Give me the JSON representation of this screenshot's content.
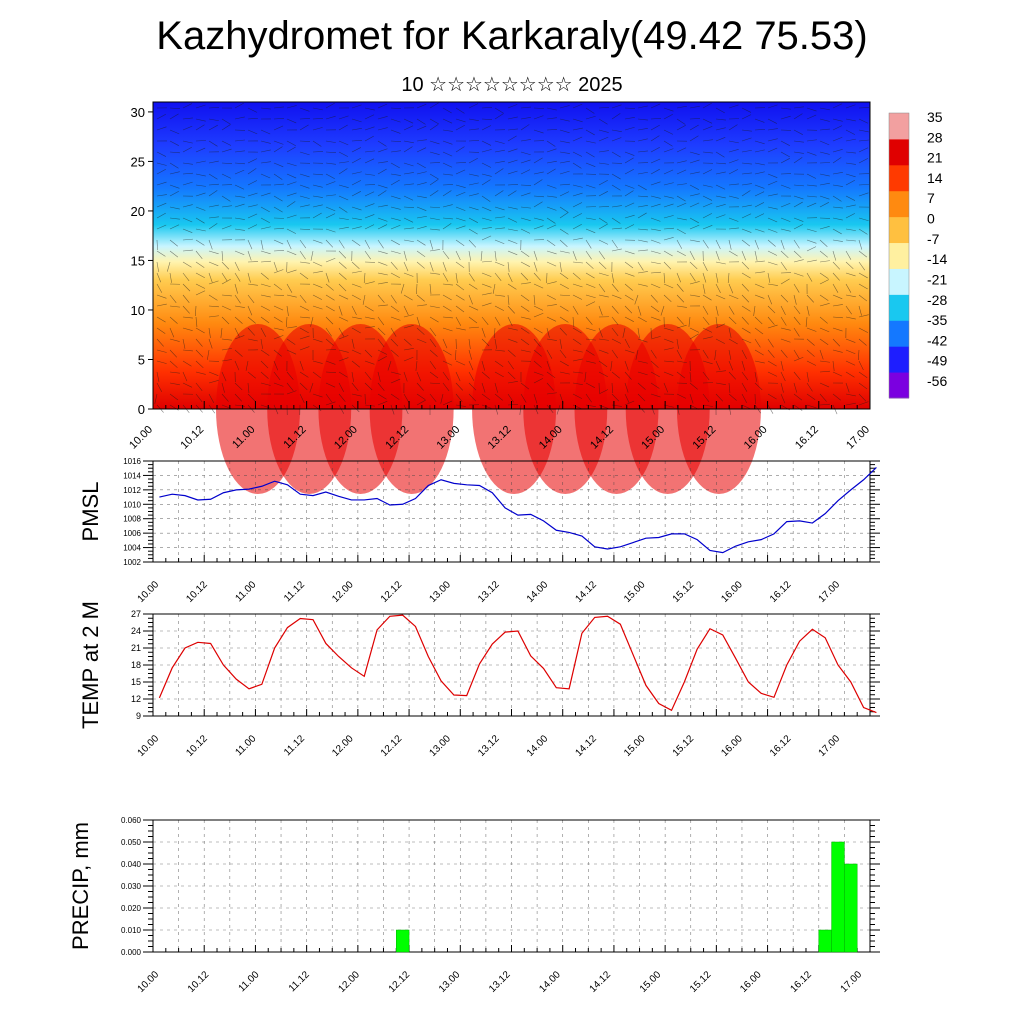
{
  "header": {
    "title": "Kazhydromet for Karkaraly(49.42 75.53)",
    "subtitle": "10 ☆☆☆☆☆☆☆☆ 2025"
  },
  "time_labels": [
    "10.00",
    "10.12",
    "11.00",
    "11.12",
    "12.00",
    "12.12",
    "13.00",
    "13.12",
    "14.00",
    "14.12",
    "15.00",
    "15.12",
    "16.00",
    "16.12",
    "17.00"
  ],
  "chart_data": [
    {
      "type": "heatmap",
      "y_ticks": [
        0,
        5,
        10,
        15,
        20,
        25,
        30
      ],
      "ylim": [
        0,
        31
      ],
      "colorbar_labels": [
        "35",
        "28",
        "21",
        "14",
        "7",
        "0",
        "-7",
        "-14",
        "-21",
        "-28",
        "-35",
        "-42",
        "-49",
        "-56"
      ],
      "colors": [
        "#7b00e0",
        "#1e1eff",
        "#1478ff",
        "#19c8f0",
        "#c8f5ff",
        "#fff0a0",
        "#ffc040",
        "#ff8a10",
        "#ff3a00",
        "#e00000",
        "#f2a0a0"
      ]
    },
    {
      "type": "line",
      "ylabel": "PMSL",
      "y_ticks": [
        1002,
        1004,
        1006,
        1008,
        1010,
        1012,
        1014,
        1016
      ],
      "ylim": [
        1002,
        1016
      ],
      "color": "#0000cc",
      "values": [
        1011,
        1011.4,
        1011.2,
        1010.6,
        1010.7,
        1011.6,
        1012,
        1012.1,
        1012.5,
        1013.2,
        1012.7,
        1011.4,
        1011.2,
        1011.7,
        1011.1,
        1010.6,
        1010.6,
        1010.8,
        1009.9,
        1010,
        1010.8,
        1012.6,
        1013.4,
        1012.9,
        1012.7,
        1012.6,
        1011.6,
        1009.5,
        1008.5,
        1008.6,
        1007.7,
        1006.4,
        1006.1,
        1005.6,
        1004.1,
        1003.8,
        1004.1,
        1004.7,
        1005.3,
        1005.4,
        1005.9,
        1005.9,
        1005.1,
        1003.6,
        1003.3,
        1004.2,
        1004.8,
        1005.1,
        1005.9,
        1007.6,
        1007.7,
        1007.4,
        1008.7,
        1010.5,
        1012,
        1013.4,
        1015.1
      ]
    },
    {
      "type": "line",
      "ylabel": "TEMP at 2 M",
      "y_ticks": [
        9,
        12,
        15,
        18,
        21,
        24,
        27
      ],
      "ylim": [
        9,
        27
      ],
      "color": "#dd0000",
      "values": [
        12.2,
        17.5,
        21,
        22,
        21.8,
        18,
        15.5,
        13.8,
        14.6,
        21,
        24.6,
        26.2,
        26,
        21.8,
        19.5,
        17.5,
        16,
        24.2,
        26.6,
        26.8,
        24.8,
        19.5,
        15.2,
        12.7,
        12.6,
        18.2,
        21.7,
        23.8,
        24,
        19.6,
        17.4,
        14,
        13.8,
        23.6,
        26.4,
        26.6,
        25.2,
        19.8,
        14.4,
        11.2,
        10,
        15,
        20.8,
        24.4,
        23.3,
        19.2,
        15,
        13,
        12.3,
        18,
        22.2,
        24.3,
        22.8,
        18,
        15,
        10.5,
        9.6
      ]
    },
    {
      "type": "bar",
      "ylabel": "PRECIP, mm",
      "y_ticks": [
        "0.000",
        "0.010",
        "0.020",
        "0.030",
        "0.040",
        "0.050",
        "0.060"
      ],
      "ylim": [
        0,
        0.06
      ],
      "color": "#00ff00",
      "bars": [
        {
          "step": 19,
          "value": 0.01
        },
        {
          "step": 52,
          "value": 0.01
        },
        {
          "step": 53,
          "value": 0.05
        },
        {
          "step": 54,
          "value": 0.04
        }
      ]
    }
  ]
}
